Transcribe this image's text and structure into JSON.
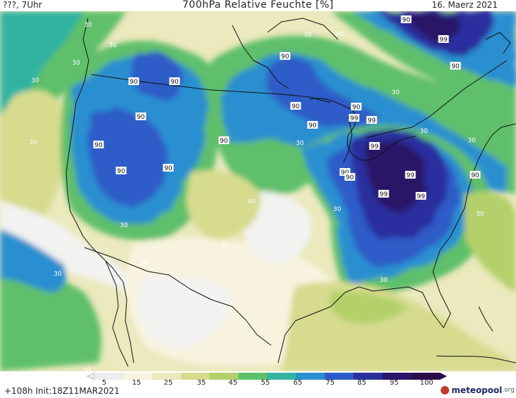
{
  "header": {
    "left": "???, 7Uhr",
    "title": "700hPa Relative Feuchte [%]",
    "date": "16. Maerz 2021"
  },
  "footer": {
    "init": "+108h  Init:18Z11MAR2021",
    "logo_text": "meteopool",
    "logo_suffix": ".org"
  },
  "legend": {
    "ticks": [
      "5",
      "15",
      "25",
      "35",
      "45",
      "55",
      "65",
      "75",
      "85",
      "95",
      "100"
    ],
    "colors": [
      "#ececec",
      "#f7f3df",
      "#ebe9bd",
      "#d6db8e",
      "#b3d06a",
      "#5fbf6a",
      "#33b3a0",
      "#2c8fd0",
      "#2d5bc8",
      "#2a2f9e",
      "#2b1566",
      "#2a0c4a"
    ]
  },
  "contour_labels": [
    "30",
    "90",
    "99",
    "30",
    "90"
  ],
  "palette": {
    "land_dry": "#ebe9bd",
    "land_mid": "#d6db8e",
    "moist": "#5fbf6a",
    "wet_teal": "#33b3a0",
    "blue": "#2c8fd0",
    "deep_blue": "#2d5bc8",
    "purple": "#2a2f9e",
    "dark_purple": "#2b1566",
    "white": "#f2f2f0"
  }
}
